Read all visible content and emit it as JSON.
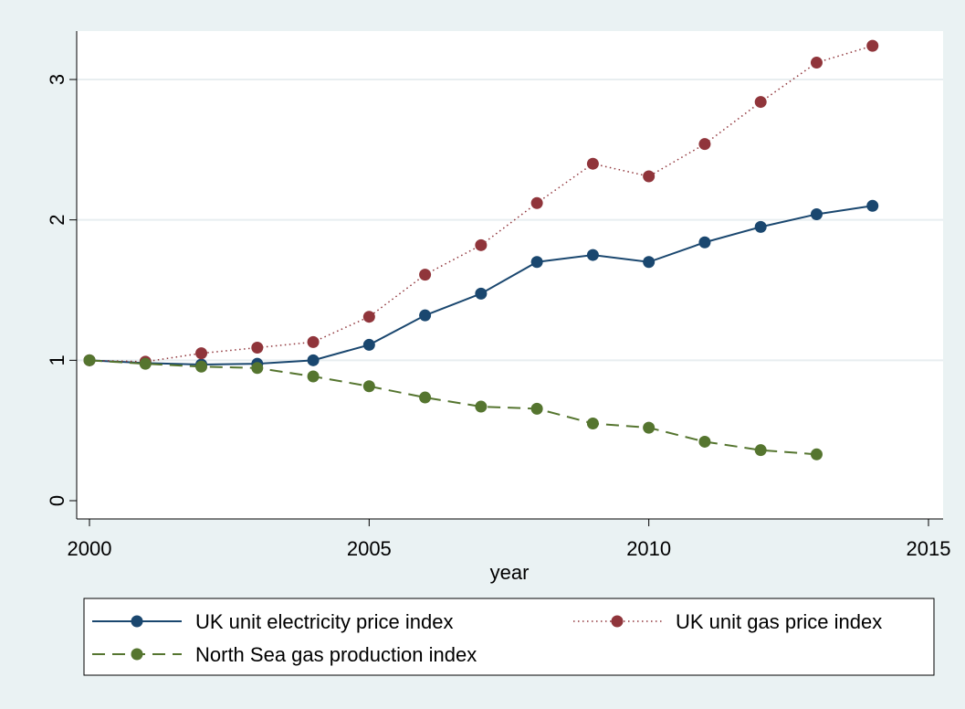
{
  "chart_data": {
    "type": "line",
    "title": "",
    "xlabel": "year",
    "ylabel": "",
    "xlim": [
      2000,
      2015
    ],
    "ylim": [
      0,
      3.3
    ],
    "xticks": [
      2000,
      2005,
      2010,
      2015
    ],
    "yticks": [
      0,
      1,
      2,
      3
    ],
    "grid": "horizontal",
    "legend_position": "bottom",
    "series": [
      {
        "name": "UK unit electricity price index",
        "color": "#1a476f",
        "style": "solid",
        "x": [
          2000,
          2001,
          2002,
          2003,
          2004,
          2005,
          2006,
          2007,
          2008,
          2009,
          2010,
          2011,
          2012,
          2013,
          2014
        ],
        "values": [
          1.0,
          0.98,
          0.97,
          0.975,
          1.0,
          1.11,
          1.32,
          1.475,
          1.7,
          1.75,
          1.7,
          1.84,
          1.95,
          2.04,
          2.1
        ]
      },
      {
        "name": "UK unit gas price index",
        "color": "#90353b",
        "style": "dotted",
        "x": [
          2000,
          2001,
          2002,
          2003,
          2004,
          2005,
          2006,
          2007,
          2008,
          2009,
          2010,
          2011,
          2012,
          2013,
          2014
        ],
        "values": [
          1.0,
          0.99,
          1.05,
          1.09,
          1.13,
          1.31,
          1.61,
          1.82,
          2.12,
          2.4,
          2.31,
          2.54,
          2.84,
          3.12,
          3.24
        ]
      },
      {
        "name": "North Sea gas production index",
        "color": "#55752f",
        "style": "dashed",
        "x": [
          2000,
          2001,
          2002,
          2003,
          2004,
          2005,
          2006,
          2007,
          2008,
          2009,
          2010,
          2011,
          2012,
          2013
        ],
        "values": [
          1.0,
          0.975,
          0.955,
          0.945,
          0.885,
          0.815,
          0.735,
          0.67,
          0.655,
          0.55,
          0.52,
          0.42,
          0.36,
          0.33
        ]
      }
    ]
  }
}
